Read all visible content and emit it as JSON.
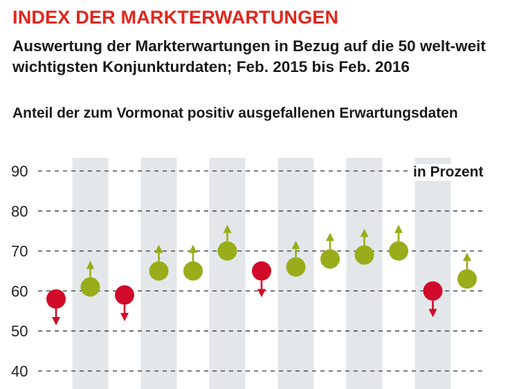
{
  "header": {
    "title": "INDEX DER MARKTERWARTUNGEN",
    "subtitle": "Auswertung der Markterwartungen in Bezug auf die 50 welt-weit wichtigsten Konjunkturdaten; Feb. 2015 bis Feb. 2016",
    "chart_label": "Anteil der zum Vormonat positiv ausgefallenen Erwartungsdaten",
    "unit_label": "in Prozent"
  },
  "colors": {
    "title": "#e3251b",
    "up": "#99ad1a",
    "down": "#d10a2a",
    "band": "#e3e7ea",
    "grid": "#333333"
  },
  "chart_data": {
    "type": "scatter",
    "title": "Anteil der zum Vormonat positiv ausgefallenen Erwartungsdaten",
    "ylabel": "in Prozent",
    "ylim": [
      40,
      90
    ],
    "yticks": [
      90,
      80,
      70,
      60,
      50,
      40
    ],
    "grid": true,
    "x": [
      1,
      2,
      3,
      4,
      5,
      6,
      7,
      8,
      9,
      10,
      11,
      12,
      13
    ],
    "values": [
      58,
      61,
      59,
      65,
      65,
      70,
      65,
      66,
      68,
      69,
      70,
      60,
      63
    ],
    "direction": [
      "down",
      "up",
      "down",
      "up",
      "up",
      "up",
      "down",
      "up",
      "up",
      "up",
      "up",
      "down",
      "up"
    ],
    "shaded_x": [
      2,
      4,
      6,
      8,
      10,
      12
    ]
  }
}
